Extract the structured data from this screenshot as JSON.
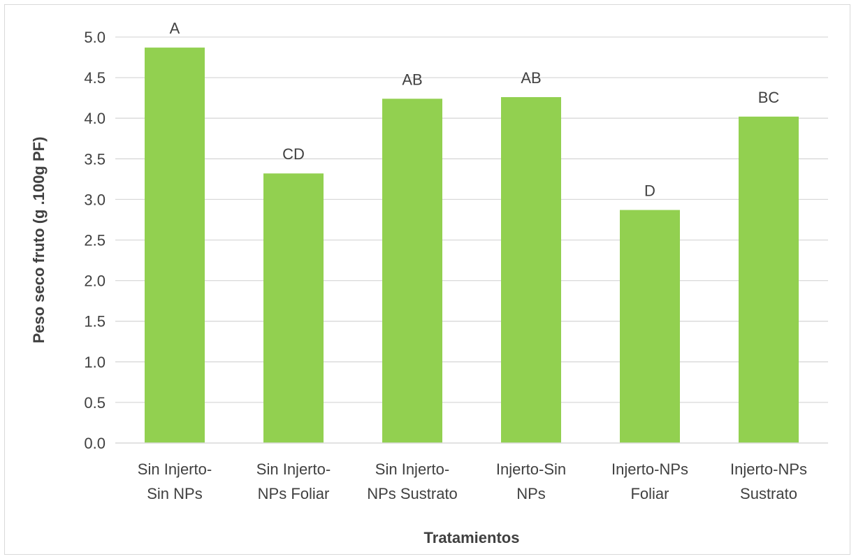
{
  "chart_data": {
    "type": "bar",
    "title": "",
    "xlabel": "Tratamientos",
    "ylabel": "Peso seco fruto (g .100g PF)",
    "ylim": [
      0,
      5
    ],
    "ytick_step": 0.5,
    "ytick_labels": [
      "0.0",
      "0.5",
      "1.0",
      "1.5",
      "2.0",
      "2.5",
      "3.0",
      "3.5",
      "4.0",
      "4.5",
      "5.0"
    ],
    "categories": [
      [
        "Sin Injerto-",
        "Sin NPs"
      ],
      [
        "Sin Injerto-",
        "NPs Foliar"
      ],
      [
        "Sin Injerto-",
        "NPs Sustrato"
      ],
      [
        "Injerto-Sin",
        "NPs"
      ],
      [
        "Injerto-NPs",
        "Foliar"
      ],
      [
        "Injerto-NPs",
        "Sustrato"
      ]
    ],
    "values": [
      4.87,
      3.32,
      4.24,
      4.26,
      2.87,
      4.02
    ],
    "data_labels": [
      "A",
      "CD",
      "AB",
      "AB",
      "D",
      "BC"
    ],
    "grid": true,
    "legend": "none",
    "bar_color": "#92d050",
    "grid_color": "#d9d9d9",
    "text_color": "#404040"
  }
}
